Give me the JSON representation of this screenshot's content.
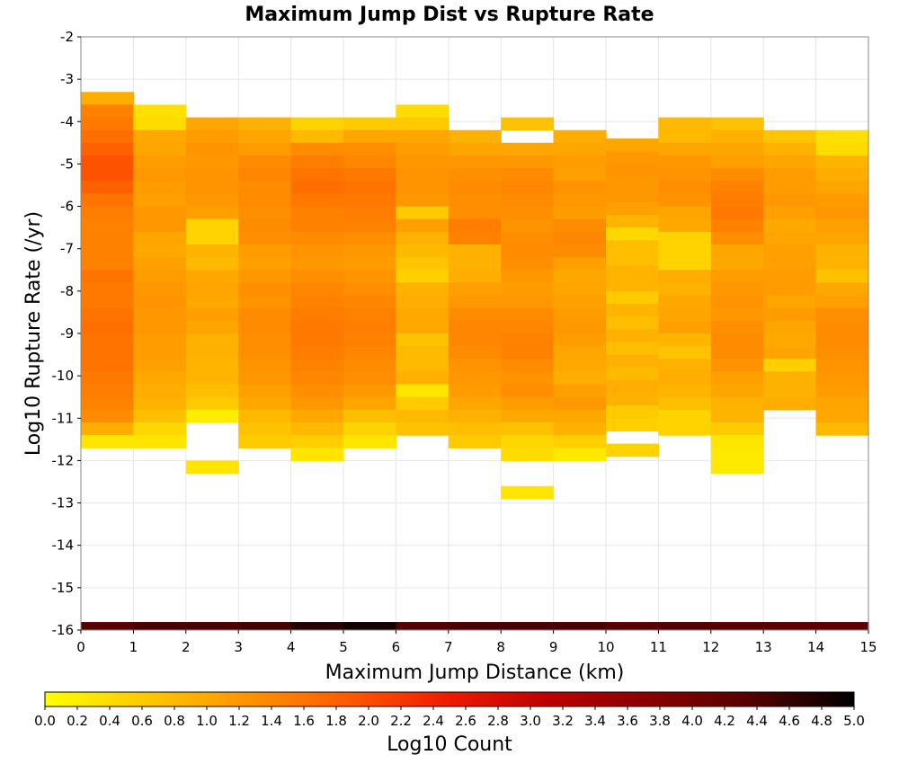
{
  "chart_data": {
    "type": "heatmap",
    "title": "Maximum Jump Dist vs Rupture Rate",
    "xlabel": "Maximum Jump Distance (km)",
    "ylabel": "Log10 Rupture Rate (/yr)",
    "xlim": [
      0,
      15
    ],
    "ylim": [
      -16,
      -2
    ],
    "x_ticks": [
      "0",
      "1",
      "2",
      "3",
      "4",
      "5",
      "6",
      "7",
      "8",
      "9",
      "10",
      "11",
      "12",
      "13",
      "14",
      "15"
    ],
    "y_ticks": [
      "-2",
      "-3",
      "-4",
      "-5",
      "-6",
      "-7",
      "-8",
      "-9",
      "-10",
      "-11",
      "-12",
      "-13",
      "-14",
      "-15",
      "-16"
    ],
    "colorbar": {
      "label": "Log10 Count",
      "min": 0.0,
      "max": 5.0,
      "ticks": [
        "0.0",
        "0.2",
        "0.4",
        "0.6",
        "0.8",
        "1.0",
        "1.2",
        "1.4",
        "1.6",
        "1.8",
        "2.0",
        "2.2",
        "2.4",
        "2.6",
        "2.8",
        "3.0",
        "3.2",
        "3.4",
        "3.6",
        "3.8",
        "4.0",
        "4.2",
        "4.4",
        "4.6",
        "4.8",
        "5.0"
      ],
      "colors": [
        "#ffff00",
        "#ffc800",
        "#ff9400",
        "#ff5a00",
        "#ee1a00",
        "#bb0000",
        "#880000",
        "#550000",
        "#000000"
      ]
    },
    "grid": true,
    "bin_width_x": 1,
    "bin_height_y": 0.3,
    "columns": [
      {
        "x0": 0,
        "y_top": -3.3,
        "values": [
          0.95,
          1.45,
          1.55,
          1.65,
          1.8,
          1.95,
          1.95,
          1.8,
          1.6,
          1.5,
          1.45,
          1.45,
          1.45,
          1.45,
          1.6,
          1.55,
          1.55,
          1.6,
          1.65,
          1.6,
          1.6,
          1.6,
          1.55,
          1.5,
          1.45,
          1.35,
          0.95,
          0.3
        ]
      },
      {
        "x0": 1,
        "y_top": -3.6,
        "values": [
          0.35,
          0.4,
          1.0,
          1.05,
          1.15,
          1.2,
          1.15,
          1.1,
          1.2,
          1.2,
          1.05,
          1.0,
          1.1,
          1.15,
          1.2,
          1.25,
          1.2,
          1.2,
          1.15,
          1.15,
          1.1,
          1.0,
          0.95,
          0.9,
          0.75,
          0.45,
          0.3
        ]
      },
      {
        "x0": 2,
        "y_top": -3.9,
        "values": [
          1.05,
          1.15,
          1.25,
          1.2,
          1.25,
          1.25,
          1.2,
          1.1,
          0.5,
          0.5,
          0.85,
          0.8,
          1.0,
          1.05,
          1.0,
          1.1,
          1.05,
          0.9,
          0.9,
          0.85,
          0.85,
          0.75,
          0.6,
          0.2,
          null,
          null,
          null,
          0.3
        ]
      },
      {
        "x0": 3,
        "y_top": -3.9,
        "values": [
          0.9,
          1.05,
          1.15,
          1.35,
          1.4,
          1.35,
          1.35,
          1.3,
          1.35,
          1.3,
          1.15,
          1.1,
          1.2,
          1.3,
          1.25,
          1.35,
          1.35,
          1.3,
          1.3,
          1.25,
          1.2,
          1.1,
          1.0,
          0.8,
          0.7,
          0.6
        ]
      },
      {
        "x0": 4,
        "y_top": -3.9,
        "values": [
          0.5,
          0.8,
          1.35,
          1.5,
          1.6,
          1.65,
          1.55,
          1.45,
          1.45,
          1.35,
          1.25,
          1.2,
          1.3,
          1.4,
          1.45,
          1.5,
          1.55,
          1.55,
          1.5,
          1.45,
          1.4,
          1.3,
          1.2,
          1.0,
          0.8,
          0.55,
          0.3
        ]
      },
      {
        "x0": 5,
        "y_top": -3.9,
        "values": [
          0.6,
          1.05,
          1.3,
          1.4,
          1.55,
          1.6,
          1.55,
          1.5,
          1.45,
          1.3,
          1.2,
          1.15,
          1.25,
          1.3,
          1.4,
          1.45,
          1.5,
          1.45,
          1.4,
          1.35,
          1.3,
          1.2,
          1.05,
          0.75,
          0.5,
          0.3
        ]
      },
      {
        "x0": 6,
        "y_top": -3.6,
        "values": [
          0.4,
          0.6,
          1.05,
          1.15,
          1.2,
          1.25,
          1.25,
          1.2,
          0.6,
          1.1,
          0.9,
          0.8,
          0.65,
          0.55,
          0.9,
          0.95,
          1.0,
          1.0,
          0.7,
          0.8,
          0.8,
          0.9,
          0.3,
          0.6,
          0.8,
          0.7
        ]
      },
      {
        "x0": 7,
        "y_top": -4.2,
        "values": [
          0.9,
          1.05,
          1.2,
          1.3,
          1.35,
          1.3,
          1.3,
          1.5,
          1.45,
          0.9,
          0.9,
          0.95,
          1.1,
          1.2,
          1.35,
          1.4,
          1.4,
          1.35,
          1.25,
          1.2,
          1.15,
          1.05,
          0.9,
          0.75,
          0.6
        ]
      },
      {
        "x0": 8,
        "y_top": -3.9,
        "values": [
          0.7,
          null,
          1.05,
          1.2,
          1.35,
          1.4,
          1.35,
          1.3,
          1.25,
          1.3,
          1.35,
          1.3,
          1.2,
          1.15,
          1.2,
          1.35,
          1.4,
          1.45,
          1.45,
          1.35,
          1.25,
          1.3,
          1.15,
          1.0,
          0.7,
          0.45,
          0.4,
          null,
          null,
          0.3
        ]
      },
      {
        "x0": 9,
        "y_top": -4.2,
        "values": [
          0.95,
          1.05,
          1.15,
          1.1,
          1.25,
          1.2,
          1.15,
          1.35,
          1.4,
          1.35,
          1.1,
          1.0,
          1.05,
          1.1,
          1.15,
          1.2,
          1.15,
          1.05,
          1.0,
          0.95,
          1.1,
          1.2,
          1.0,
          0.9,
          0.55,
          0.25
        ]
      },
      {
        "x0": 10,
        "y_top": -4.4,
        "values": [
          1.05,
          1.2,
          1.25,
          1.2,
          1.2,
          1.1,
          0.85,
          0.45,
          0.75,
          0.75,
          0.85,
          0.85,
          0.6,
          0.85,
          0.75,
          0.9,
          0.75,
          0.9,
          0.8,
          0.95,
          0.9,
          0.6,
          0.55,
          null,
          0.5
        ]
      },
      {
        "x0": 11,
        "y_top": -3.9,
        "values": [
          0.8,
          0.8,
          1.05,
          1.2,
          1.25,
          1.3,
          1.25,
          1.05,
          1.0,
          0.5,
          0.5,
          0.5,
          0.95,
          0.9,
          1.0,
          1.05,
          1.1,
          0.85,
          0.7,
          0.9,
          0.95,
          0.85,
          0.75,
          0.5,
          0.5
        ]
      },
      {
        "x0": 12,
        "y_top": -3.9,
        "values": [
          0.7,
          0.9,
          1.05,
          1.1,
          1.35,
          1.45,
          1.5,
          1.55,
          1.45,
          1.3,
          1.05,
          1.0,
          1.15,
          1.2,
          1.25,
          1.2,
          1.3,
          1.35,
          1.35,
          1.25,
          1.1,
          1.05,
          0.9,
          0.85,
          0.6,
          0.3,
          0.25,
          0.25
        ]
      },
      {
        "x0": 13,
        "y_top": -4.2,
        "values": [
          0.65,
          0.9,
          1.05,
          1.15,
          1.15,
          1.2,
          1.1,
          1.0,
          1.05,
          1.1,
          1.1,
          1.15,
          1.15,
          1.05,
          1.15,
          1.05,
          1.0,
          1.05,
          0.55,
          0.9,
          0.9,
          0.95
        ]
      },
      {
        "x0": 14,
        "y_top": -4.2,
        "values": [
          0.35,
          0.4,
          0.85,
          0.95,
          1.05,
          1.15,
          1.2,
          1.1,
          1.05,
          0.9,
          0.85,
          0.7,
          1.0,
          1.1,
          1.3,
          1.35,
          1.35,
          1.3,
          1.25,
          1.2,
          1.15,
          1.05,
          1.0,
          0.8
        ]
      }
    ],
    "bottom_row": {
      "y": -16,
      "values": [
        4.35,
        4.45,
        4.45,
        4.5,
        4.7,
        4.85,
        4.4,
        4.45,
        4.45,
        4.45,
        4.35,
        4.4,
        4.35,
        4.3,
        4.3
      ]
    }
  }
}
